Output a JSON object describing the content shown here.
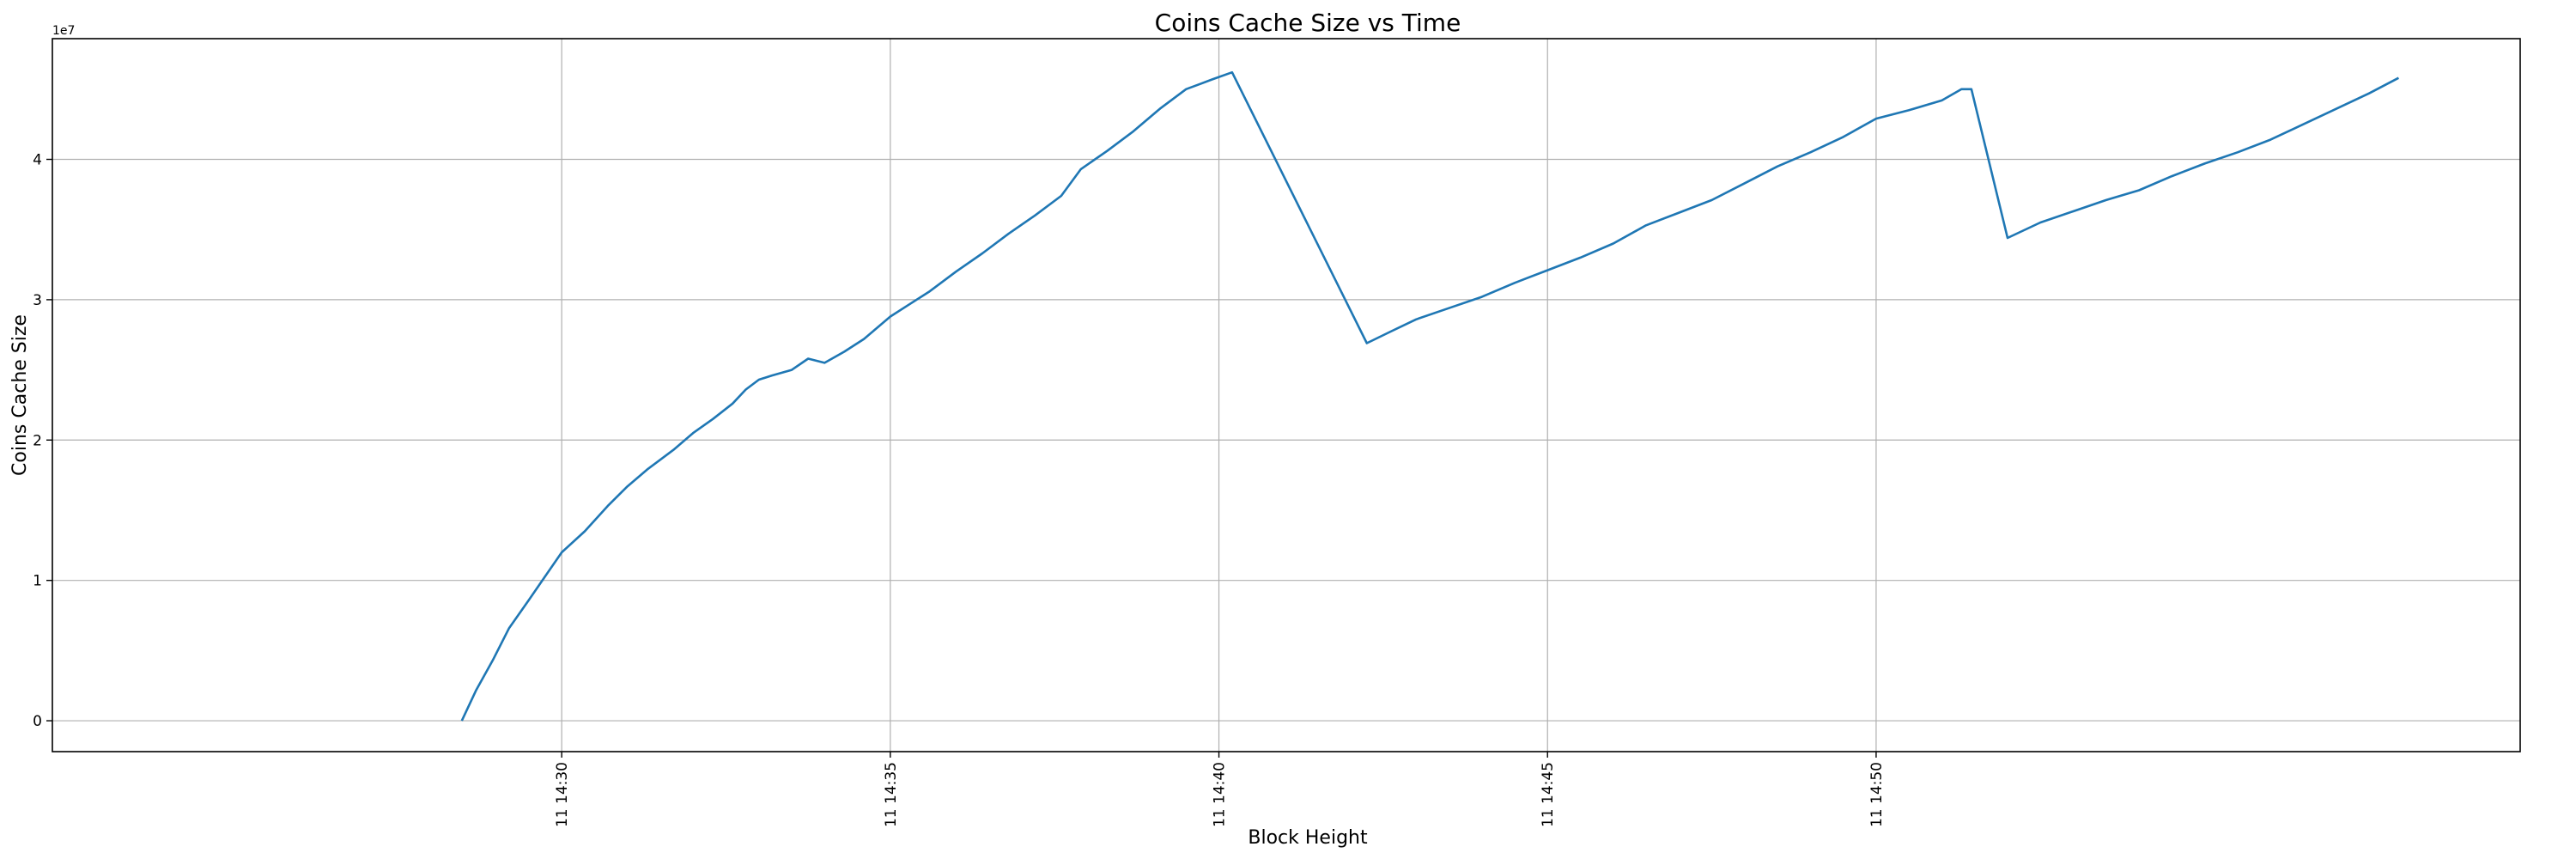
{
  "chart_data": {
    "type": "line",
    "title": "Coins Cache Size vs Time",
    "xlabel": "Block Height",
    "ylabel": "Coins Cache Size",
    "y_offset_label": "1e7",
    "grid": true,
    "x_is_time": true,
    "x_unit": "minutes after 14:00 on day 11",
    "xlim": [
      22.25,
      59.8
    ],
    "ylim": [
      -2200000,
      48600000
    ],
    "x_ticks": [
      {
        "value": 30,
        "label": "11 14:30"
      },
      {
        "value": 35,
        "label": "11 14:35"
      },
      {
        "value": 40,
        "label": "11 14:40"
      },
      {
        "value": 45,
        "label": "11 14:45"
      },
      {
        "value": 50,
        "label": "11 14:50"
      }
    ],
    "y_ticks": [
      {
        "value": 0,
        "label": "0"
      },
      {
        "value": 10000000,
        "label": "1"
      },
      {
        "value": 20000000,
        "label": "2"
      },
      {
        "value": 30000000,
        "label": "3"
      },
      {
        "value": 40000000,
        "label": "4"
      }
    ],
    "series": [
      {
        "color": "#1f77b4",
        "points": [
          [
            28.48,
            0
          ],
          [
            28.7,
            2200000
          ],
          [
            28.95,
            4300000
          ],
          [
            29.2,
            6600000
          ],
          [
            29.5,
            8600000
          ],
          [
            29.75,
            10300000
          ],
          [
            30.0,
            12000000
          ],
          [
            30.35,
            13500000
          ],
          [
            30.7,
            15300000
          ],
          [
            31.0,
            16700000
          ],
          [
            31.3,
            17900000
          ],
          [
            31.7,
            19300000
          ],
          [
            32.0,
            20500000
          ],
          [
            32.3,
            21500000
          ],
          [
            32.6,
            22600000
          ],
          [
            32.8,
            23600000
          ],
          [
            33.0,
            24300000
          ],
          [
            33.2,
            24600000
          ],
          [
            33.5,
            25000000
          ],
          [
            33.75,
            25800000
          ],
          [
            34.0,
            25500000
          ],
          [
            34.3,
            26300000
          ],
          [
            34.6,
            27200000
          ],
          [
            35.0,
            28800000
          ],
          [
            35.3,
            29700000
          ],
          [
            35.6,
            30600000
          ],
          [
            36.0,
            32000000
          ],
          [
            36.4,
            33300000
          ],
          [
            36.8,
            34700000
          ],
          [
            37.2,
            36000000
          ],
          [
            37.6,
            37400000
          ],
          [
            37.9,
            39300000
          ],
          [
            38.3,
            40600000
          ],
          [
            38.7,
            42000000
          ],
          [
            39.1,
            43600000
          ],
          [
            39.5,
            45000000
          ],
          [
            39.9,
            45700000
          ],
          [
            40.2,
            46200000
          ],
          [
            42.25,
            26900000
          ],
          [
            42.6,
            27700000
          ],
          [
            43.0,
            28600000
          ],
          [
            43.5,
            29400000
          ],
          [
            44.0,
            30200000
          ],
          [
            44.5,
            31200000
          ],
          [
            45.0,
            32100000
          ],
          [
            45.5,
            33000000
          ],
          [
            46.0,
            34000000
          ],
          [
            46.5,
            35300000
          ],
          [
            47.0,
            36200000
          ],
          [
            47.5,
            37100000
          ],
          [
            48.0,
            38300000
          ],
          [
            48.5,
            39500000
          ],
          [
            49.0,
            40500000
          ],
          [
            49.5,
            41600000
          ],
          [
            50.0,
            42900000
          ],
          [
            50.5,
            43500000
          ],
          [
            51.0,
            44200000
          ],
          [
            51.3,
            45000000
          ],
          [
            51.45,
            45000000
          ],
          [
            52.0,
            34400000
          ],
          [
            52.5,
            35500000
          ],
          [
            53.0,
            36300000
          ],
          [
            53.5,
            37100000
          ],
          [
            54.0,
            37800000
          ],
          [
            54.5,
            38800000
          ],
          [
            55.0,
            39700000
          ],
          [
            55.5,
            40500000
          ],
          [
            56.0,
            41400000
          ],
          [
            56.5,
            42500000
          ],
          [
            57.0,
            43600000
          ],
          [
            57.5,
            44700000
          ],
          [
            57.95,
            45800000
          ]
        ]
      }
    ]
  }
}
